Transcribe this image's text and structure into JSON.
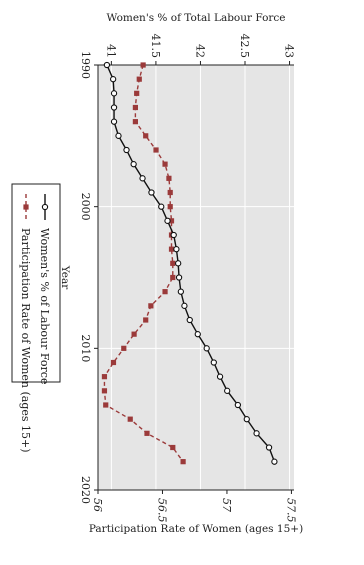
{
  "chart_data": {
    "type": "line",
    "orientation": "rotated-90-clockwise",
    "title": "",
    "xlabel": "Year",
    "ylabel_left": "Women's % of Total Labour Force",
    "ylabel_right": "Participation Rate of Women (ages 15+)",
    "xlim": [
      1990,
      2020
    ],
    "ylim_left": [
      40.85,
      43.05
    ],
    "ylim_right": [
      56.0,
      57.52
    ],
    "x_ticks": [
      "1990",
      "2000",
      "2010",
      "2020"
    ],
    "y_ticks_left": [
      "41",
      "41.5",
      "42",
      "42.5",
      "43"
    ],
    "y_ticks_right": [
      "56",
      "56.5",
      "57",
      "57.5"
    ],
    "grid": true,
    "legend_position": "bottom",
    "colors": {
      "series1": "#111111",
      "series2": "#9b3a3a",
      "plot_bg": "#e5e5e5"
    },
    "x": [
      1990,
      1991,
      1992,
      1993,
      1994,
      1995,
      1996,
      1997,
      1998,
      1999,
      2000,
      2001,
      2002,
      2003,
      2004,
      2005,
      2006,
      2007,
      2008,
      2009,
      2010,
      2011,
      2012,
      2013,
      2014,
      2015,
      2016,
      2017,
      2018
    ],
    "series": [
      {
        "name": "Women's % of Labour Force",
        "axis": "left",
        "marker": "circle",
        "values": [
          40.95,
          41.02,
          41.03,
          41.03,
          41.03,
          41.08,
          41.17,
          41.25,
          41.35,
          41.45,
          41.56,
          41.63,
          41.7,
          41.73,
          41.75,
          41.76,
          41.78,
          41.82,
          41.88,
          41.97,
          42.07,
          42.15,
          42.22,
          42.3,
          42.42,
          42.52,
          42.63,
          42.77,
          42.83
        ]
      },
      {
        "name": "Participation Rate of Women (ages 15+)",
        "axis": "right",
        "marker": "square",
        "values": [
          56.35,
          56.32,
          56.3,
          56.29,
          56.29,
          56.37,
          56.45,
          56.52,
          56.55,
          56.56,
          56.56,
          56.57,
          56.57,
          56.57,
          56.58,
          56.58,
          56.52,
          56.41,
          56.37,
          56.28,
          56.2,
          56.12,
          56.05,
          56.05,
          56.06,
          56.25,
          56.38,
          56.58,
          56.66
        ]
      }
    ]
  }
}
